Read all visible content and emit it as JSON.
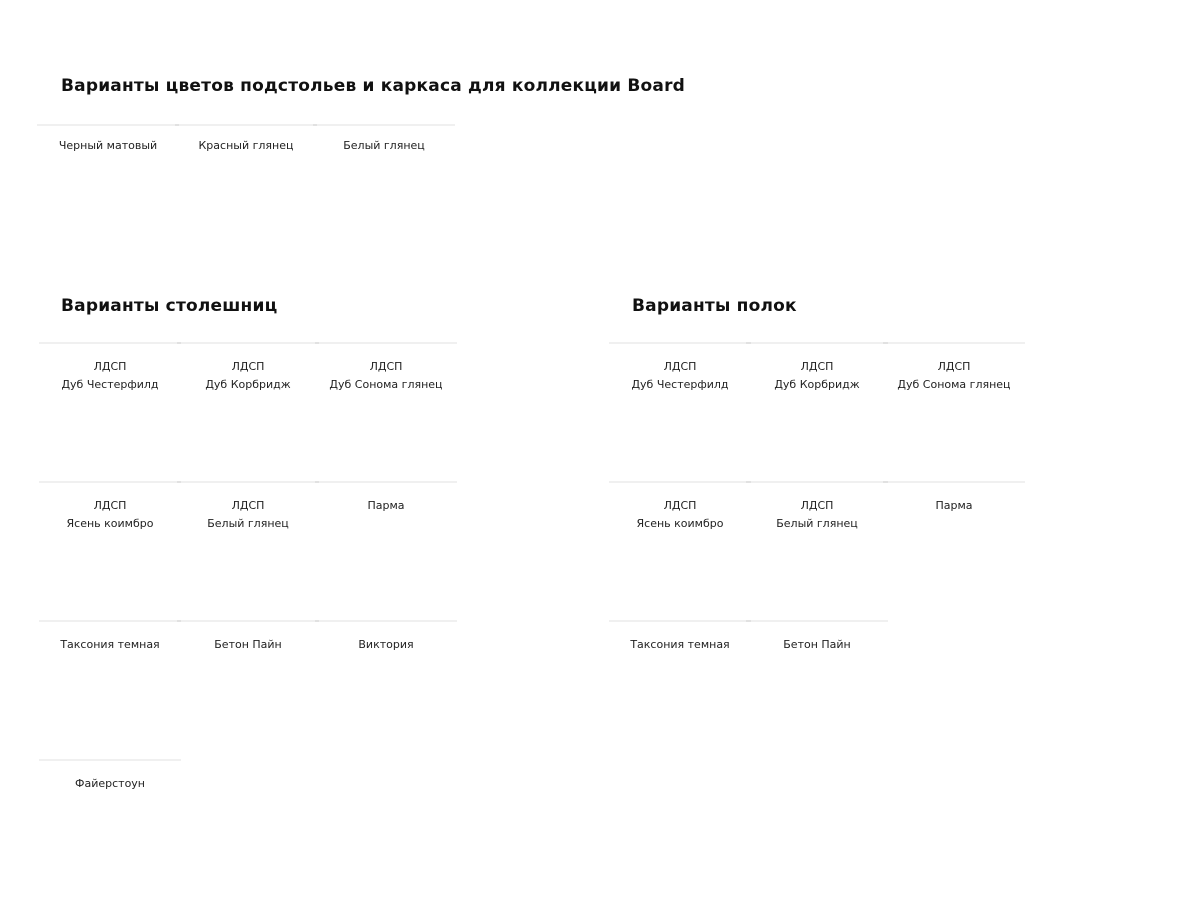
{
  "frame": {
    "title": "Варианты цветов подстольев и каркаса для коллекции Board",
    "items": [
      {
        "name": "Черный матовый",
        "color": "#000000"
      },
      {
        "name": "Красный глянец",
        "color": "#7e0b04"
      },
      {
        "name": "Белый глянец",
        "color": "#f6f6f6"
      }
    ]
  },
  "tabletops": {
    "title": "Варианты столешниц",
    "items": [
      {
        "material": "ЛДСП",
        "name": "Дуб Честерфилд",
        "color": "#2a1b14"
      },
      {
        "material": "ЛДСП",
        "name": "Дуб Корбридж",
        "color": "#d09a4e"
      },
      {
        "material": "ЛДСП",
        "name": "Дуб Сонома глянец",
        "color": "#e6c9a0"
      },
      {
        "material": "ЛДСП",
        "name": "Ясень коимбро",
        "color": "#f3dba8"
      },
      {
        "material": "ЛДСП",
        "name": "Белый глянец",
        "color": "#faf8f6"
      },
      {
        "material": "",
        "name": "Парма",
        "color": "#ede0d6"
      },
      {
        "material": "",
        "name": "Таксония темная",
        "color": "#5a2c20"
      },
      {
        "material": "",
        "name": "Бетон Пайн",
        "color": "#bfa79c"
      },
      {
        "material": "",
        "name": "Виктория",
        "color": "#e6ddd6"
      },
      {
        "material": "",
        "name": "Файерстоун",
        "color": "#222222"
      }
    ]
  },
  "shelves": {
    "title": "Варианты полок",
    "items": [
      {
        "material": "ЛДСП",
        "name": "Дуб Честерфилд",
        "color": "#2a1b14"
      },
      {
        "material": "ЛДСП",
        "name": "Дуб Корбридж",
        "color": "#d09a4e"
      },
      {
        "material": "ЛДСП",
        "name": "Дуб Сонома глянец",
        "color": "#e6c9a0"
      },
      {
        "material": "ЛДСП",
        "name": "Ясень коимбро",
        "color": "#f3dba8"
      },
      {
        "material": "ЛДСП",
        "name": "Белый глянец",
        "color": "#faf8f6"
      },
      {
        "material": "",
        "name": "Парма",
        "color": "#ede0d6"
      },
      {
        "material": "",
        "name": "Таксония темная",
        "color": "#5a2c20"
      },
      {
        "material": "",
        "name": "Бетон Пайн",
        "color": "#bfa79c"
      }
    ]
  }
}
